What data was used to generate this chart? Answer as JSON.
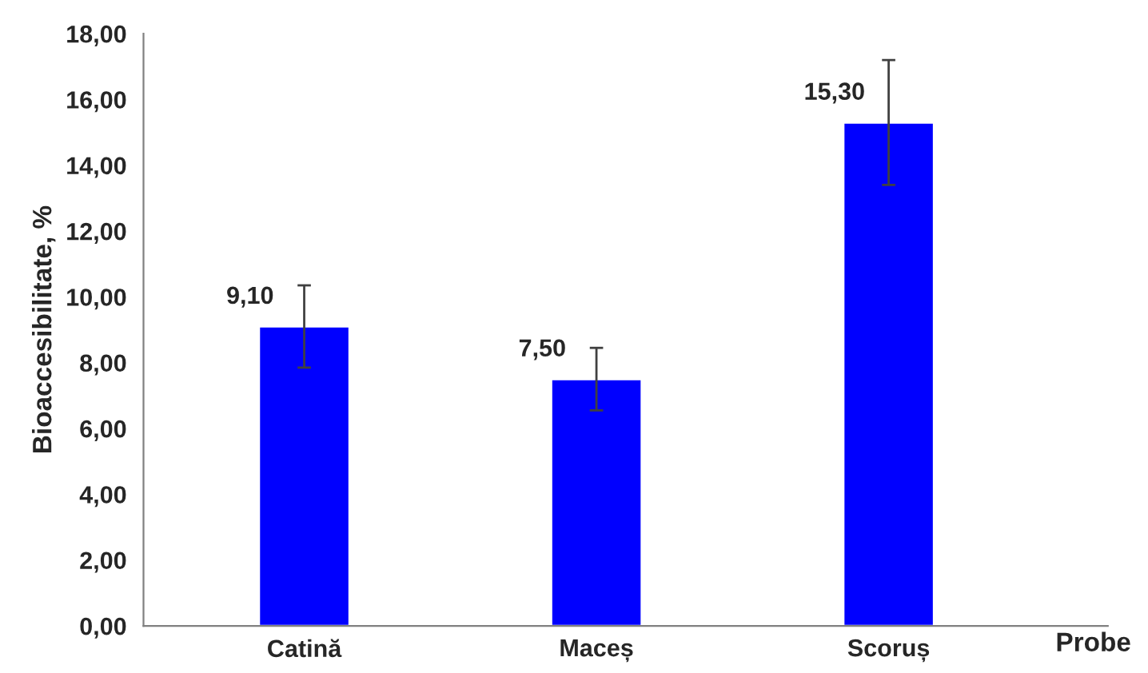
{
  "chart_data": {
    "type": "bar",
    "xlabel": "Probe",
    "ylabel": "Bioaccesibilitate, %",
    "categories": [
      "Catină",
      "Maceș",
      "Scoruș"
    ],
    "values": [
      9.1,
      7.5,
      15.3
    ],
    "errors": [
      1.25,
      0.95,
      1.9
    ],
    "value_labels": [
      "9,10",
      "7,50",
      "15,30"
    ],
    "color": "#0000ff",
    "ylim": [
      0,
      18
    ],
    "yticks": [
      {
        "value": 0,
        "label": "0,00"
      },
      {
        "value": 2,
        "label": "2,00"
      },
      {
        "value": 4,
        "label": "4,00"
      },
      {
        "value": 6,
        "label": "6,00"
      },
      {
        "value": 8,
        "label": "8,00"
      },
      {
        "value": 10,
        "label": "10,00"
      },
      {
        "value": 12,
        "label": "12,00"
      },
      {
        "value": 14,
        "label": "14,00"
      },
      {
        "value": 16,
        "label": "16,00"
      },
      {
        "value": 18,
        "label": "18,00"
      }
    ],
    "grid": false,
    "legend": false
  }
}
